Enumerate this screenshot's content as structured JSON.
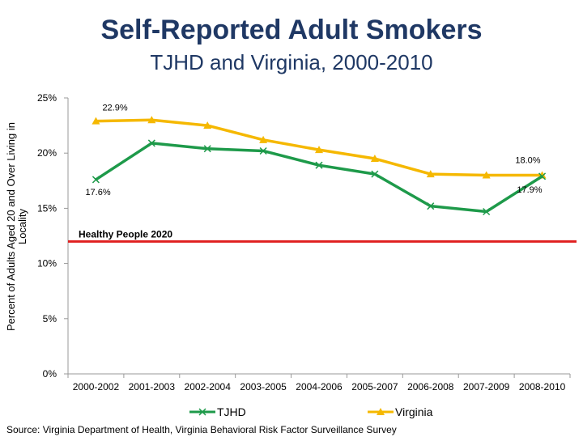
{
  "header": {
    "title": "Self-Reported Adult Smokers",
    "subtitle": "TJHD and Virginia, 2000-2010"
  },
  "footer": {
    "source": "Source: Virginia Department of Health, Virginia Behavioral Risk Factor Surveillance Survey"
  },
  "colors": {
    "tjhd": "#1e9a4a",
    "virginia": "#f5b800",
    "benchmark": "#e02020",
    "axis": "#999999",
    "text": "#000000"
  },
  "chart_data": {
    "type": "line",
    "title": "Self-Reported Adult Smokers",
    "subtitle": "TJHD and Virginia, 2000-2010",
    "xlabel": "",
    "ylabel": "Percent of Adults Aged 20 and Over Living in Locality",
    "ylim": [
      0,
      25
    ],
    "y_ticks": [
      0,
      5,
      10,
      15,
      20,
      25
    ],
    "y_tick_labels": [
      "0%",
      "5%",
      "10%",
      "15%",
      "20%",
      "25%"
    ],
    "grid": false,
    "legend_position": "bottom",
    "categories": [
      "2000-2002",
      "2001-2003",
      "2002-2004",
      "2003-2005",
      "2004-2006",
      "2005-2007",
      "2006-2008",
      "2007-2009",
      "2008-2010"
    ],
    "series": [
      {
        "name": "TJHD",
        "marker": "x",
        "color": "#1e9a4a",
        "values": [
          17.6,
          20.9,
          20.4,
          20.2,
          18.9,
          18.1,
          15.2,
          14.7,
          17.9
        ]
      },
      {
        "name": "Virginia",
        "marker": "triangle",
        "color": "#f5b800",
        "values": [
          22.9,
          23.0,
          22.5,
          21.2,
          20.3,
          19.5,
          18.1,
          18.0,
          18.0
        ]
      }
    ],
    "reference_line": {
      "label": "Healthy People 2020",
      "value": 12.0,
      "color": "#e02020"
    },
    "annotations": [
      {
        "text": "22.9%",
        "series": "Virginia",
        "index": 0
      },
      {
        "text": "17.6%",
        "series": "TJHD",
        "index": 0
      },
      {
        "text": "18.0%",
        "series": "Virginia",
        "index": 8
      },
      {
        "text": "17.9%",
        "series": "TJHD",
        "index": 8
      }
    ]
  }
}
